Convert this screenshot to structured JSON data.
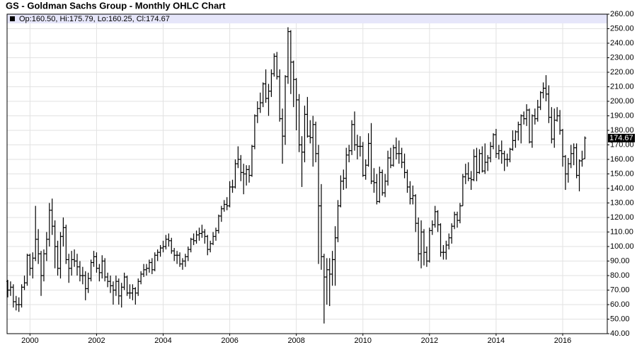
{
  "chart_data": {
    "type": "ohlc",
    "title": "GS - Goldman Sachs Group - Monthly OHLC Chart",
    "legend": "Op:160.50, Hi:175.79, Lo:160.25, Cl:174.67",
    "color": "#000000",
    "grid": true,
    "categories": [
      null,
      null,
      null,
      null,
      null,
      null,
      null,
      null,
      "2000",
      null,
      null,
      null,
      null,
      null,
      null,
      null,
      null,
      null,
      null,
      null,
      null,
      null,
      null,
      null,
      null,
      null,
      null,
      null,
      null,
      null,
      null,
      null,
      "2002",
      null,
      null,
      null,
      null,
      null,
      null,
      null,
      null,
      null,
      null,
      null,
      null,
      null,
      null,
      null,
      null,
      null,
      null,
      null,
      null,
      null,
      null,
      null,
      "2004",
      null,
      null,
      null,
      null,
      null,
      null,
      null,
      null,
      null,
      null,
      null,
      null,
      null,
      null,
      null,
      null,
      null,
      null,
      null,
      null,
      null,
      null,
      null,
      "2006",
      null,
      null,
      null,
      null,
      null,
      null,
      null,
      null,
      null,
      null,
      null,
      null,
      null,
      null,
      null,
      null,
      null,
      null,
      null,
      null,
      null,
      null,
      null,
      "2008",
      null,
      null,
      null,
      null,
      null,
      null,
      null,
      null,
      null,
      null,
      null,
      null,
      null,
      null,
      null,
      null,
      null,
      null,
      null,
      null,
      null,
      null,
      null,
      "2010",
      null,
      null,
      null,
      null,
      null,
      null,
      null,
      null,
      null,
      null,
      null,
      null,
      null,
      null,
      null,
      null,
      null,
      null,
      null,
      null,
      null,
      null,
      null,
      "2012",
      null,
      null,
      null,
      null,
      null,
      null,
      null,
      null,
      null,
      null,
      null,
      null,
      null,
      null,
      null,
      null,
      null,
      null,
      null,
      null,
      null,
      null,
      null,
      "2014",
      null,
      null,
      null,
      null,
      null,
      null,
      null,
      null,
      null,
      null,
      null,
      null,
      null,
      null,
      null,
      null,
      null,
      null,
      null,
      null,
      null,
      null,
      null,
      "2016",
      null,
      null,
      null,
      null,
      null,
      null,
      null,
      null
    ],
    "open": [
      76,
      70,
      72,
      62,
      60,
      60,
      72,
      75,
      94,
      85,
      92,
      105,
      95,
      80,
      95,
      105,
      125,
      114,
      100,
      85,
      107,
      113,
      91,
      85,
      91,
      90,
      86,
      80,
      80,
      71,
      78,
      89,
      93,
      85,
      82,
      90,
      79,
      76,
      73,
      70,
      76,
      66,
      72,
      79,
      68,
      68,
      71,
      68,
      76,
      81,
      84,
      85,
      89,
      84,
      94,
      96,
      99,
      100,
      105,
      104,
      97,
      94,
      94,
      88,
      90,
      93,
      98,
      105,
      104,
      108,
      109,
      110,
      107,
      98,
      102,
      107,
      111,
      121,
      126,
      129,
      128,
      141,
      141,
      157,
      160,
      151,
      150,
      153,
      149,
      169,
      190,
      195,
      199,
      212,
      202,
      207,
      219,
      231,
      217,
      188,
      176,
      217,
      248,
      227,
      215,
      201,
      170,
      165,
      191,
      176,
      175,
      184,
      164,
      128,
      93,
      79,
      84,
      81,
      91,
      106,
      128,
      145,
      147,
      163,
      166,
      184,
      170,
      169,
      169,
      149,
      156,
      171,
      145,
      144,
      131,
      151,
      137,
      145,
      161,
      156,
      168,
      164,
      164,
      158,
      151,
      141,
      133,
      135,
      116,
      95,
      110,
      96,
      90,
      111,
      115,
      124,
      115,
      96,
      96,
      101,
      106,
      114,
      122,
      118,
      128,
      148,
      150,
      147,
      146,
      162,
      151,
      164,
      152,
      158,
      161,
      169,
      177,
      164,
      166,
      164,
      160,
      160,
      167,
      173,
      179,
      184,
      190,
      188,
      194,
      172,
      190,
      188,
      196,
      206,
      209,
      205,
      189,
      174,
      187,
      190,
      180,
      162,
      150,
      157,
      164,
      168,
      149,
      159,
      160.5
    ],
    "high": [
      77,
      76,
      74,
      66,
      65,
      74,
      80,
      95,
      95,
      96,
      128,
      112,
      97,
      98,
      110,
      130,
      133,
      118,
      104,
      110,
      120,
      115,
      95,
      97,
      98,
      95,
      90,
      86,
      83,
      82,
      91,
      97,
      96,
      88,
      94,
      92,
      82,
      80,
      76,
      80,
      78,
      75,
      82,
      80,
      74,
      74,
      72,
      78,
      83,
      88,
      88,
      91,
      92,
      96,
      98,
      101,
      104,
      108,
      109,
      106,
      99,
      97,
      96,
      92,
      95,
      100,
      106,
      109,
      111,
      113,
      115,
      112,
      108,
      104,
      110,
      113,
      122,
      128,
      132,
      134,
      145,
      146,
      160,
      169,
      163,
      157,
      156,
      156,
      170,
      191,
      200,
      206,
      213,
      222,
      212,
      222,
      233,
      234,
      222,
      195,
      218,
      251,
      249,
      228,
      216,
      205,
      176,
      197,
      203,
      187,
      190,
      186,
      170,
      143,
      95,
      92,
      92,
      97,
      114,
      132,
      149,
      153,
      168,
      170,
      187,
      193,
      177,
      176,
      172,
      160,
      178,
      185,
      154,
      150,
      155,
      153,
      150,
      166,
      168,
      170,
      175,
      173,
      168,
      164,
      153,
      145,
      142,
      136,
      120,
      118,
      112,
      100,
      113,
      118,
      128,
      125,
      116,
      101,
      104,
      109,
      116,
      124,
      124,
      130,
      150,
      157,
      158,
      152,
      167,
      168,
      167,
      169,
      171,
      163,
      172,
      178,
      181,
      170,
      173,
      166,
      164,
      168,
      180,
      180,
      186,
      191,
      193,
      198,
      195,
      191,
      195,
      201,
      207,
      213,
      218,
      211,
      196,
      195,
      196,
      194,
      181,
      163,
      161,
      170,
      171,
      171,
      160,
      166,
      175.79
    ],
    "low": [
      65,
      66,
      58,
      56,
      55,
      58,
      70,
      73,
      80,
      78,
      90,
      88,
      66,
      76,
      90,
      100,
      108,
      85,
      80,
      78,
      100,
      88,
      75,
      80,
      86,
      80,
      76,
      74,
      63,
      68,
      76,
      86,
      82,
      76,
      78,
      76,
      72,
      68,
      60,
      66,
      60,
      58,
      70,
      66,
      64,
      63,
      60,
      66,
      74,
      79,
      80,
      82,
      81,
      83,
      90,
      93,
      96,
      98,
      100,
      95,
      90,
      88,
      86,
      84,
      86,
      90,
      96,
      101,
      102,
      104,
      106,
      102,
      94,
      96,
      101,
      104,
      109,
      117,
      124,
      125,
      127,
      137,
      140,
      154,
      145,
      136,
      142,
      144,
      148,
      167,
      185,
      192,
      196,
      199,
      190,
      203,
      217,
      215,
      186,
      157,
      170,
      212,
      205,
      196,
      180,
      165,
      141,
      158,
      175,
      171,
      155,
      158,
      88,
      84,
      47,
      60,
      59,
      73,
      73,
      103,
      127,
      139,
      140,
      158,
      163,
      166,
      160,
      162,
      148,
      146,
      155,
      143,
      137,
      129,
      130,
      135,
      134,
      142,
      154,
      155,
      160,
      157,
      154,
      147,
      137,
      129,
      129,
      110,
      90,
      85,
      87,
      86,
      89,
      108,
      113,
      110,
      93,
      91,
      91,
      98,
      102,
      112,
      113,
      116,
      128,
      143,
      145,
      139,
      145,
      145,
      150,
      151,
      150,
      152,
      158,
      167,
      161,
      160,
      157,
      152,
      155,
      158,
      166,
      168,
      173,
      171,
      184,
      183,
      171,
      168,
      184,
      186,
      194,
      202,
      200,
      185,
      171,
      168,
      186,
      177,
      155,
      139,
      144,
      154,
      156,
      147,
      138,
      155,
      160.25
    ],
    "close": [
      70,
      72,
      62,
      60,
      60,
      72,
      75,
      94,
      85,
      92,
      105,
      95,
      80,
      95,
      105,
      125,
      114,
      100,
      85,
      107,
      113,
      91,
      85,
      91,
      90,
      86,
      80,
      80,
      71,
      78,
      89,
      93,
      85,
      82,
      90,
      79,
      76,
      73,
      70,
      76,
      66,
      72,
      79,
      68,
      68,
      71,
      68,
      76,
      81,
      84,
      85,
      89,
      84,
      94,
      96,
      99,
      100,
      105,
      104,
      97,
      94,
      94,
      88,
      90,
      93,
      98,
      105,
      104,
      108,
      109,
      110,
      107,
      98,
      102,
      107,
      111,
      121,
      126,
      129,
      128,
      141,
      141,
      157,
      160,
      151,
      150,
      153,
      149,
      169,
      190,
      195,
      199,
      212,
      202,
      207,
      219,
      231,
      217,
      188,
      176,
      217,
      248,
      227,
      215,
      201,
      170,
      165,
      191,
      176,
      175,
      184,
      164,
      128,
      93,
      79,
      84,
      81,
      91,
      106,
      128,
      145,
      147,
      163,
      166,
      184,
      170,
      169,
      169,
      149,
      156,
      171,
      145,
      144,
      131,
      151,
      137,
      145,
      161,
      156,
      168,
      164,
      164,
      158,
      151,
      141,
      133,
      135,
      116,
      95,
      110,
      96,
      90,
      111,
      115,
      124,
      115,
      96,
      96,
      101,
      106,
      114,
      122,
      118,
      128,
      148,
      150,
      147,
      146,
      162,
      151,
      164,
      152,
      158,
      161,
      169,
      177,
      164,
      166,
      164,
      160,
      160,
      167,
      173,
      179,
      184,
      190,
      188,
      194,
      172,
      190,
      188,
      196,
      206,
      209,
      205,
      189,
      174,
      187,
      190,
      180,
      162,
      150,
      157,
      164,
      168,
      149,
      159,
      160,
      174.67
    ],
    "ylim": [
      40,
      260
    ],
    "yticks": [
      {
        "value": 40,
        "label": "40.00"
      },
      {
        "value": 50,
        "label": "50.00"
      },
      {
        "value": 60,
        "label": "60.00"
      },
      {
        "value": 70,
        "label": "70.00"
      },
      {
        "value": 80,
        "label": "80.00"
      },
      {
        "value": 90,
        "label": "90.00"
      },
      {
        "value": 100,
        "label": "100.00"
      },
      {
        "value": 110,
        "label": "110.00"
      },
      {
        "value": 120,
        "label": "120.00"
      },
      {
        "value": 130,
        "label": "130.00"
      },
      {
        "value": 140,
        "label": "140.00"
      },
      {
        "value": 150,
        "label": "150.00"
      },
      {
        "value": 160,
        "label": "160.00"
      },
      {
        "value": 170,
        "label": "170.00"
      },
      {
        "value": 180,
        "label": "180.00"
      },
      {
        "value": 190,
        "label": "190.00"
      },
      {
        "value": 200,
        "label": "200.00"
      },
      {
        "value": 210,
        "label": "210.00"
      },
      {
        "value": 220,
        "label": "220.00"
      },
      {
        "value": 230,
        "label": "230.00"
      },
      {
        "value": 240,
        "label": "240.00"
      },
      {
        "value": 250,
        "label": "250.00"
      },
      {
        "value": 260,
        "label": "260.00"
      }
    ]
  }
}
